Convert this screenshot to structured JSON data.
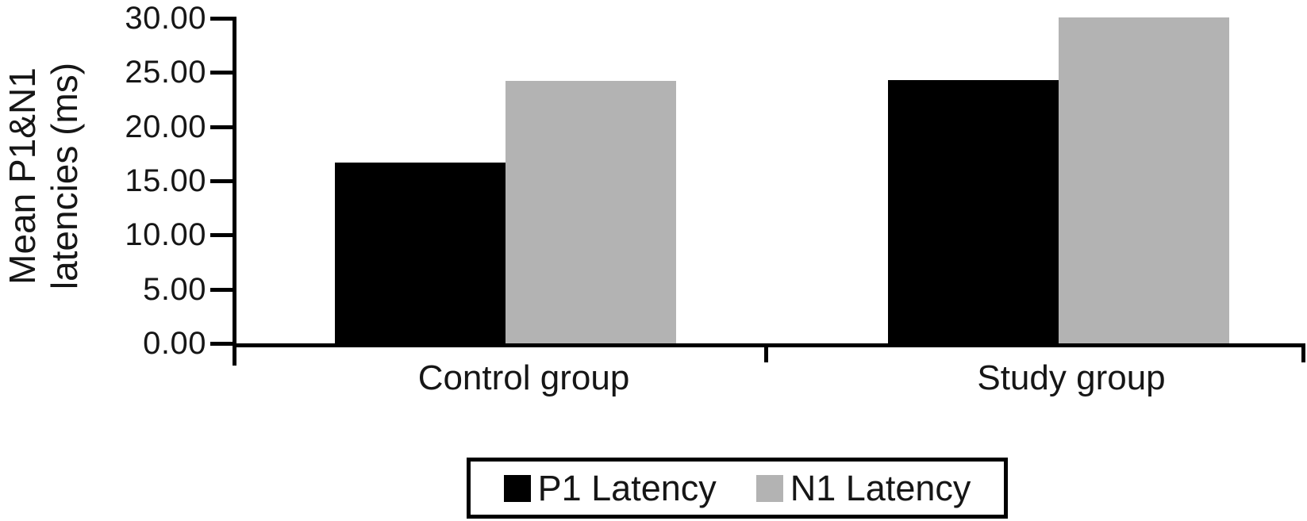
{
  "chart_data": {
    "type": "bar",
    "categories": [
      "Control group",
      "Study group"
    ],
    "series": [
      {
        "name": "P1 Latency",
        "color": "#000000",
        "values": [
          16.7,
          24.3
        ]
      },
      {
        "name": "N1 Latency",
        "color": "#b3b3b3",
        "values": [
          24.2,
          30.1
        ]
      }
    ],
    "ylabel_line1": "Mean P1&N1",
    "ylabel_line2": "latencies (ms)",
    "yticks": [
      "0.00",
      "5.00",
      "10.00",
      "15.00",
      "20.00",
      "25.00",
      "30.00"
    ],
    "ylim": [
      0,
      30
    ],
    "xlabel": "",
    "grid": false,
    "legend_position": "bottom",
    "axis_color": "#000000",
    "text_color": "#161616",
    "background_color": "#ffffff"
  }
}
